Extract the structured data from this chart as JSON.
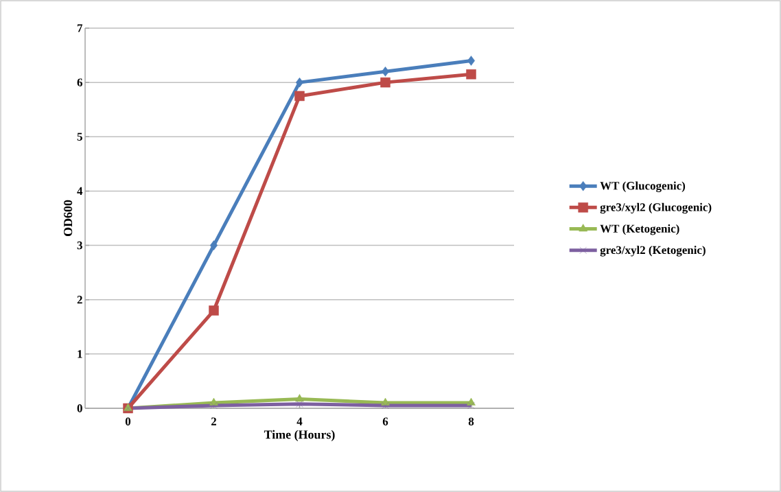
{
  "chart_data": {
    "type": "line",
    "xlabel": "Time (Hours)",
    "ylabel": "OD600",
    "categories": [
      "0",
      "2",
      "4",
      "6",
      "8"
    ],
    "series": [
      {
        "name": "WT (Glucogenic)",
        "color": "#4a7ebb",
        "marker": "diamond",
        "values": [
          0,
          3.0,
          6.0,
          6.2,
          6.4
        ]
      },
      {
        "name": "gre3/xyl2 (Glucogenic)",
        "color": "#be4b48",
        "marker": "square",
        "values": [
          0,
          1.8,
          5.75,
          6.0,
          6.15
        ]
      },
      {
        "name": "WT (Ketogenic)",
        "color": "#98b954",
        "marker": "triangle",
        "values": [
          0,
          0.1,
          0.17,
          0.1,
          0.1
        ]
      },
      {
        "name": "gre3/xyl2 (Ketogenic)",
        "color": "#7d60a0",
        "marker": "cross",
        "values": [
          0,
          0.05,
          0.08,
          0.05,
          0.05
        ]
      }
    ],
    "ylim": [
      0,
      7
    ],
    "yticks": [
      0,
      1,
      2,
      3,
      4,
      5,
      6,
      7
    ],
    "grid": "y",
    "legend": "right",
    "line_style": "solid"
  }
}
